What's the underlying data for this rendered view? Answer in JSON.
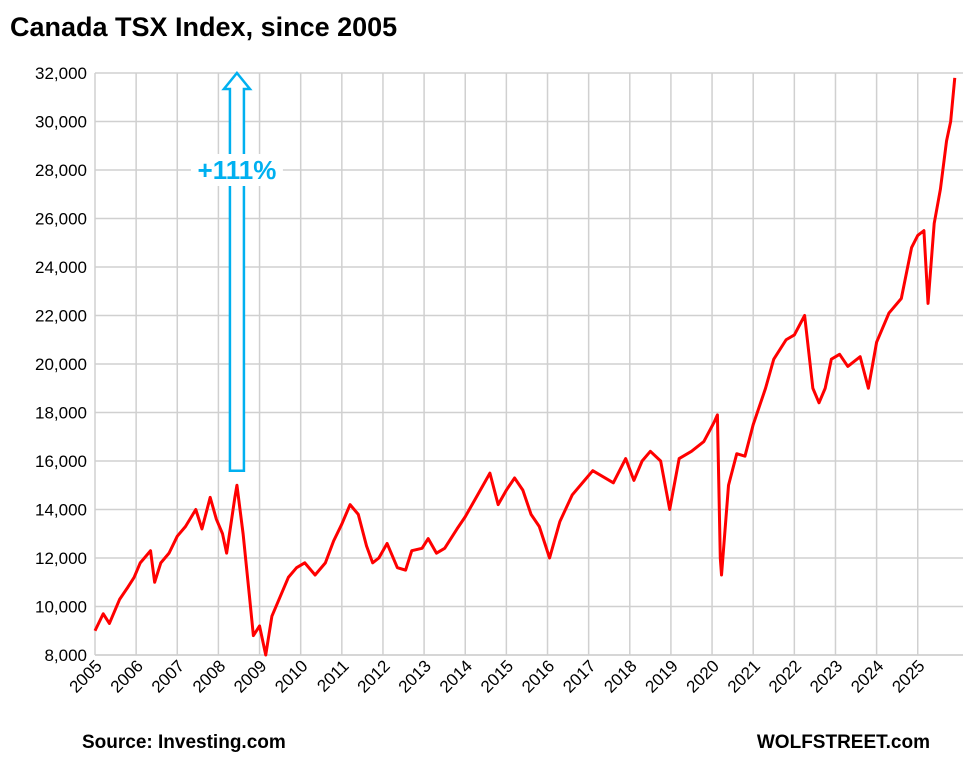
{
  "chart_data": {
    "type": "line",
    "title": "Canada TSX Index, since 2005",
    "x": [
      2005.0,
      2005.2,
      2005.35,
      2005.6,
      2005.8,
      2005.95,
      2006.1,
      2006.35,
      2006.45,
      2006.6,
      2006.8,
      2007.0,
      2007.2,
      2007.45,
      2007.6,
      2007.8,
      2007.95,
      2008.1,
      2008.2,
      2008.4,
      2008.45,
      2008.6,
      2008.75,
      2008.85,
      2009.0,
      2009.15,
      2009.3,
      2009.5,
      2009.7,
      2009.9,
      2010.1,
      2010.35,
      2010.6,
      2010.8,
      2011.0,
      2011.2,
      2011.4,
      2011.6,
      2011.75,
      2011.9,
      2012.1,
      2012.35,
      2012.55,
      2012.7,
      2012.95,
      2013.1,
      2013.3,
      2013.5,
      2013.8,
      2014.0,
      2014.3,
      2014.6,
      2014.8,
      2015.0,
      2015.2,
      2015.4,
      2015.6,
      2015.8,
      2016.05,
      2016.3,
      2016.6,
      2016.9,
      2017.1,
      2017.4,
      2017.6,
      2017.9,
      2018.1,
      2018.3,
      2018.5,
      2018.75,
      2018.97,
      2019.2,
      2019.5,
      2019.8,
      2020.05,
      2020.13,
      2020.2,
      2020.23,
      2020.4,
      2020.6,
      2020.8,
      2021.0,
      2021.3,
      2021.5,
      2021.8,
      2022.0,
      2022.25,
      2022.45,
      2022.6,
      2022.75,
      2022.9,
      2023.1,
      2023.3,
      2023.6,
      2023.8,
      2024.0,
      2024.3,
      2024.6,
      2024.85,
      2025.0,
      2025.15,
      2025.25,
      2025.4,
      2025.55,
      2025.7,
      2025.8,
      2025.9
    ],
    "series": [
      {
        "name": "TSX",
        "color": "#ff0000",
        "values": [
          9000,
          9700,
          9300,
          10300,
          10800,
          11200,
          11800,
          12300,
          11000,
          11800,
          12200,
          12900,
          13300,
          14000,
          13200,
          14500,
          13600,
          13000,
          12200,
          14500,
          15000,
          13000,
          10500,
          8800,
          9200,
          8000,
          9600,
          10400,
          11200,
          11600,
          11800,
          11300,
          11800,
          12700,
          13400,
          14200,
          13800,
          12500,
          11800,
          12000,
          12600,
          11600,
          11500,
          12300,
          12400,
          12800,
          12200,
          12400,
          13200,
          13700,
          14600,
          15500,
          14200,
          14800,
          15300,
          14800,
          13800,
          13300,
          12000,
          13500,
          14600,
          15200,
          15600,
          15300,
          15100,
          16100,
          15200,
          16000,
          16400,
          16000,
          14000,
          16100,
          16400,
          16800,
          17600,
          17900,
          12000,
          11300,
          15000,
          16300,
          16200,
          17500,
          19000,
          20200,
          21000,
          21200,
          22000,
          19000,
          18400,
          19000,
          20200,
          20400,
          19900,
          20300,
          19000,
          20900,
          22100,
          22700,
          24800,
          25300,
          25500,
          22500,
          25800,
          27200,
          29200,
          30000,
          31800
        ]
      }
    ],
    "xlim": [
      2005,
      2026.1
    ],
    "xticks": [
      2005,
      2006,
      2007,
      2008,
      2009,
      2010,
      2011,
      2012,
      2013,
      2014,
      2015,
      2016,
      2017,
      2018,
      2019,
      2020,
      2021,
      2022,
      2023,
      2024,
      2025
    ],
    "ylim": [
      8000,
      32000
    ],
    "yticks": [
      {
        "value": 8000,
        "label": "8,000"
      },
      {
        "value": 10000,
        "label": "10,000"
      },
      {
        "value": 12000,
        "label": "12,000"
      },
      {
        "value": 14000,
        "label": "14,000"
      },
      {
        "value": 16000,
        "label": "16,000"
      },
      {
        "value": 18000,
        "label": "18,000"
      },
      {
        "value": 20000,
        "label": "20,000"
      },
      {
        "value": 22000,
        "label": "22,000"
      },
      {
        "value": 24000,
        "label": "24,000"
      },
      {
        "value": 26000,
        "label": "26,000"
      },
      {
        "value": 28000,
        "label": "28,000"
      },
      {
        "value": 30000,
        "label": "30,000"
      },
      {
        "value": 32000,
        "label": "32,000"
      }
    ],
    "grid": true,
    "annotation": {
      "text": "+111%",
      "x": 2008.45,
      "from": 15600,
      "to": 32000,
      "color": "#00b0f0"
    },
    "source": "Source: Investing.com",
    "credit": "WOLFSTREET.com"
  }
}
